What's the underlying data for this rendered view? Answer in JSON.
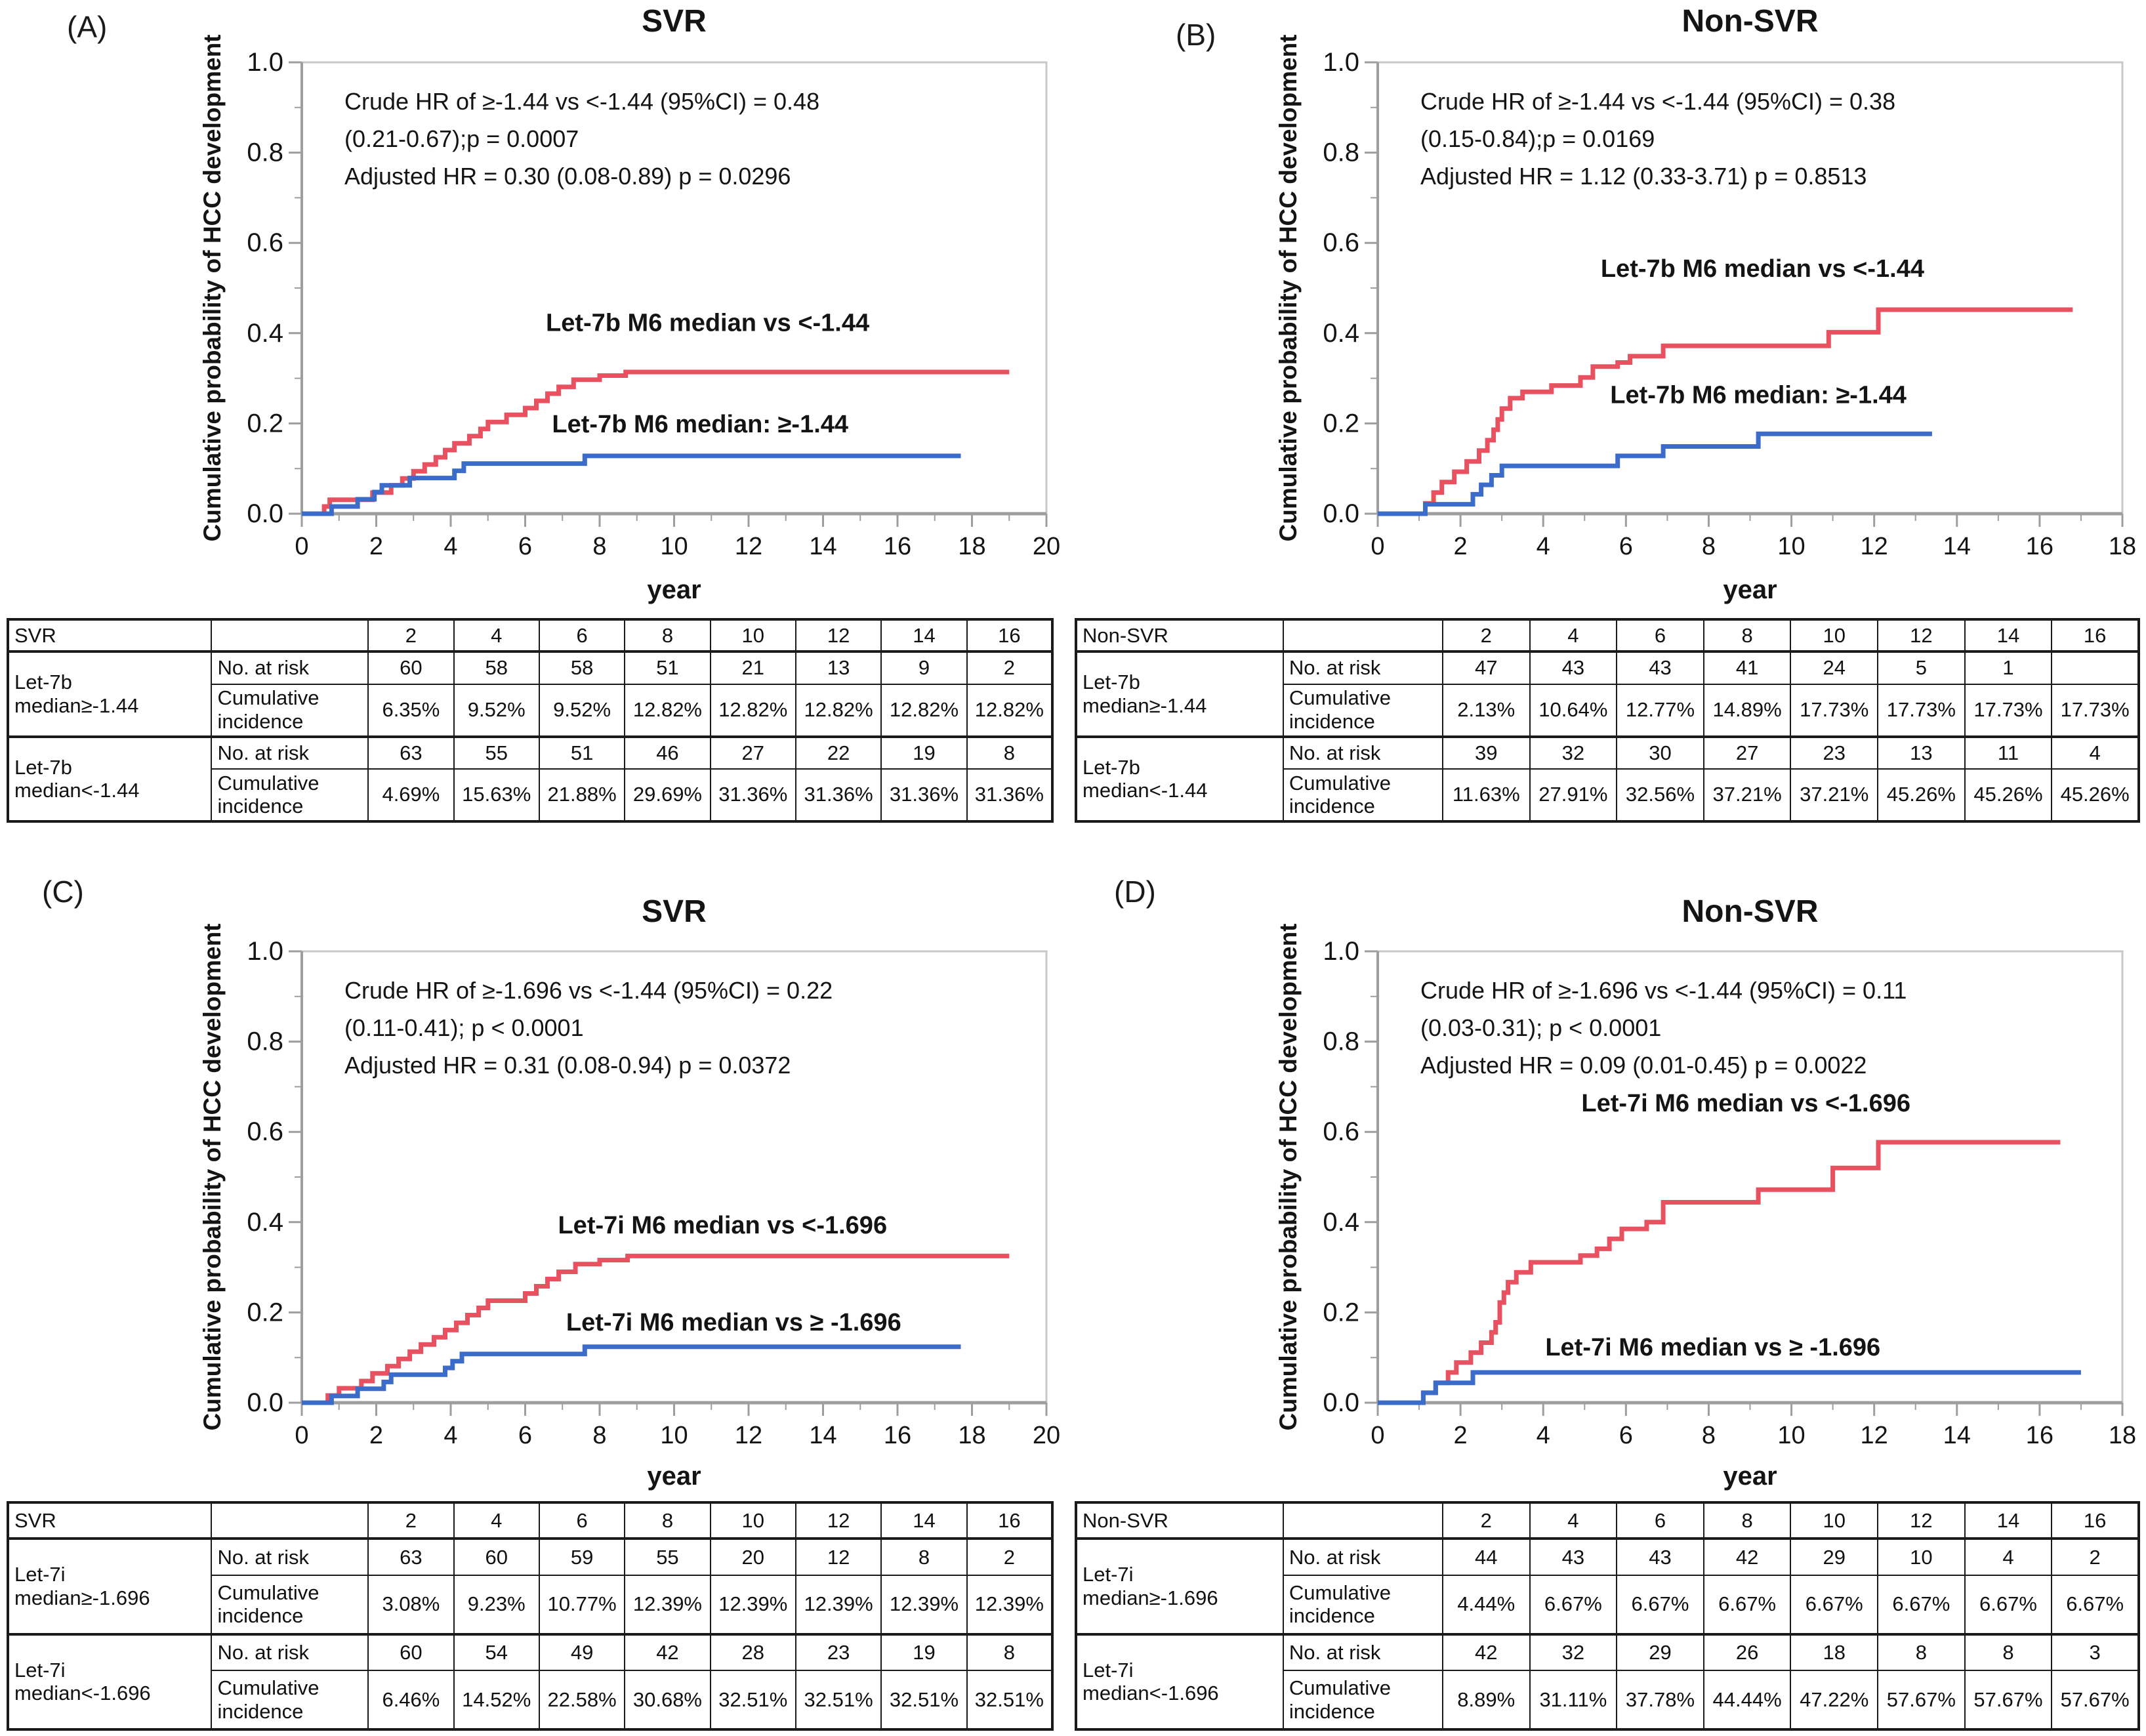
{
  "colors": {
    "red": "#E85160",
    "blue": "#3B6CC9",
    "axis": "#9E9E9E",
    "plot_border": "#C8C8C8",
    "text": "#141414",
    "table_border": "#1A1A1A"
  },
  "shared": {
    "ylabel": "Cumulative probability of HCC development",
    "xlabel": "year",
    "risk_label": "No. at risk",
    "cum_label_line1": "Cumulative",
    "cum_label_line2": "incidence"
  },
  "chart_data": [
    {
      "id": "A",
      "panel_label": "(A)",
      "title": "SVR",
      "type": "line",
      "xlabel": "year",
      "ylabel": "Cumulative probability of HCC development",
      "xlim": [
        0,
        20
      ],
      "ylim": [
        0,
        1
      ],
      "xticks": [
        0,
        2,
        4,
        6,
        8,
        10,
        12,
        14,
        16,
        18,
        20
      ],
      "yticks": [
        0,
        0.2,
        0.4,
        0.6,
        0.8,
        1
      ],
      "annotation": [
        "Crude HR of ≥-1.44 vs <-1.44 (95%CI) = 0.48",
        "(0.21-0.67);p = 0.0007",
        "Adjusted HR = 0.30 (0.08-0.89)  p = 0.0296"
      ],
      "series": [
        {
          "name": "Let-7b M6 median vs <-1.44",
          "color": "red",
          "label_x": 10.9,
          "label_y": 0.405,
          "points": [
            [
              0,
              0
            ],
            [
              0.6,
              0.016
            ],
            [
              0.75,
              0.031
            ],
            [
              1.9,
              0.047
            ],
            [
              2.4,
              0.063
            ],
            [
              2.7,
              0.078
            ],
            [
              3.0,
              0.094
            ],
            [
              3.3,
              0.109
            ],
            [
              3.6,
              0.125
            ],
            [
              3.85,
              0.141
            ],
            [
              4.1,
              0.156
            ],
            [
              4.5,
              0.172
            ],
            [
              4.8,
              0.188
            ],
            [
              5.0,
              0.203
            ],
            [
              5.5,
              0.219
            ],
            [
              6.0,
              0.234
            ],
            [
              6.3,
              0.25
            ],
            [
              6.6,
              0.266
            ],
            [
              6.9,
              0.281
            ],
            [
              7.3,
              0.297
            ],
            [
              8.0,
              0.306
            ],
            [
              8.7,
              0.314
            ],
            [
              19.0,
              0.314
            ]
          ]
        },
        {
          "name": "Let-7b M6 median: ≥-1.44",
          "color": "blue",
          "label_x": 10.7,
          "label_y": 0.18,
          "points": [
            [
              0,
              0
            ],
            [
              0.8,
              0.016
            ],
            [
              1.5,
              0.032
            ],
            [
              1.95,
              0.048
            ],
            [
              2.15,
              0.063
            ],
            [
              2.9,
              0.079
            ],
            [
              4.1,
              0.095
            ],
            [
              4.35,
              0.111
            ],
            [
              7.6,
              0.128
            ],
            [
              17.7,
              0.128
            ]
          ]
        }
      ]
    },
    {
      "id": "B",
      "panel_label": "(B)",
      "title": "Non-SVR",
      "type": "line",
      "xlabel": "year",
      "ylabel": "Cumulative probability of HCC development",
      "xlim": [
        0,
        18
      ],
      "ylim": [
        0,
        1
      ],
      "xticks": [
        0,
        2,
        4,
        6,
        8,
        10,
        12,
        14,
        16,
        18
      ],
      "yticks": [
        0,
        0.2,
        0.4,
        0.6,
        0.8,
        1
      ],
      "annotation": [
        "Crude HR of ≥-1.44 vs <-1.44 (95%CI) = 0.38",
        "(0.15-0.84);p = 0.0169",
        "Adjusted HR = 1.12 (0.33-3.71)  p = 0.8513"
      ],
      "series": [
        {
          "name": "Let-7b M6 median vs <-1.44",
          "color": "red",
          "label_x": 9.3,
          "label_y": 0.525,
          "points": [
            [
              0,
              0
            ],
            [
              1.15,
              0.023
            ],
            [
              1.35,
              0.047
            ],
            [
              1.55,
              0.07
            ],
            [
              1.85,
              0.093
            ],
            [
              2.15,
              0.116
            ],
            [
              2.45,
              0.14
            ],
            [
              2.65,
              0.163
            ],
            [
              2.8,
              0.186
            ],
            [
              2.9,
              0.209
            ],
            [
              3.0,
              0.233
            ],
            [
              3.2,
              0.256
            ],
            [
              3.5,
              0.27
            ],
            [
              4.2,
              0.284
            ],
            [
              4.9,
              0.302
            ],
            [
              5.2,
              0.326
            ],
            [
              5.8,
              0.335
            ],
            [
              6.1,
              0.349
            ],
            [
              6.9,
              0.372
            ],
            [
              10.9,
              0.402
            ],
            [
              12.1,
              0.452
            ],
            [
              16.8,
              0.452
            ]
          ]
        },
        {
          "name": "Let-7b M6 median: ≥-1.44",
          "color": "blue",
          "label_x": 9.2,
          "label_y": 0.245,
          "points": [
            [
              0,
              0
            ],
            [
              1.15,
              0.021
            ],
            [
              2.3,
              0.043
            ],
            [
              2.5,
              0.064
            ],
            [
              2.75,
              0.085
            ],
            [
              3.0,
              0.106
            ],
            [
              5.8,
              0.128
            ],
            [
              6.9,
              0.149
            ],
            [
              9.2,
              0.177
            ],
            [
              13.4,
              0.177
            ]
          ]
        }
      ]
    },
    {
      "id": "C",
      "panel_label": "(C)",
      "title": "SVR",
      "type": "line",
      "xlabel": "year",
      "ylabel": "Cumulative probability of HCC development",
      "xlim": [
        0,
        20
      ],
      "ylim": [
        0,
        1
      ],
      "xticks": [
        0,
        2,
        4,
        6,
        8,
        10,
        12,
        14,
        16,
        18,
        20
      ],
      "yticks": [
        0,
        0.2,
        0.4,
        0.6,
        0.8,
        1
      ],
      "annotation": [
        "Crude HR of ≥-1.696 vs <-1.44 (95%CI) = 0.22",
        "(0.11-0.41); p < 0.0001",
        "Adjusted HR = 0.31 (0.08-0.94) p = 0.0372"
      ],
      "series": [
        {
          "name": "Let-7i M6 median vs <-1.696",
          "color": "red",
          "label_x": 11.3,
          "label_y": 0.375,
          "points": [
            [
              0,
              0
            ],
            [
              0.7,
              0.016
            ],
            [
              1.0,
              0.032
            ],
            [
              1.6,
              0.048
            ],
            [
              1.9,
              0.065
            ],
            [
              2.3,
              0.081
            ],
            [
              2.6,
              0.097
            ],
            [
              2.9,
              0.113
            ],
            [
              3.2,
              0.129
            ],
            [
              3.55,
              0.145
            ],
            [
              3.85,
              0.161
            ],
            [
              4.15,
              0.177
            ],
            [
              4.45,
              0.194
            ],
            [
              4.75,
              0.21
            ],
            [
              5.0,
              0.226
            ],
            [
              6.0,
              0.242
            ],
            [
              6.3,
              0.258
            ],
            [
              6.6,
              0.274
            ],
            [
              6.9,
              0.29
            ],
            [
              7.35,
              0.307
            ],
            [
              8.0,
              0.316
            ],
            [
              8.75,
              0.325
            ],
            [
              19.0,
              0.325
            ]
          ]
        },
        {
          "name": "Let-7i M6 median vs ≥ -1.696",
          "color": "blue",
          "label_x": 11.6,
          "label_y": 0.16,
          "points": [
            [
              0,
              0
            ],
            [
              0.8,
              0.015
            ],
            [
              1.5,
              0.031
            ],
            [
              2.2,
              0.046
            ],
            [
              2.4,
              0.062
            ],
            [
              3.85,
              0.077
            ],
            [
              4.05,
              0.092
            ],
            [
              4.3,
              0.108
            ],
            [
              7.6,
              0.124
            ],
            [
              17.7,
              0.124
            ]
          ]
        }
      ]
    },
    {
      "id": "D",
      "panel_label": "(D)",
      "title": "Non-SVR",
      "type": "line",
      "xlabel": "year",
      "ylabel": "Cumulative probability of HCC development",
      "xlim": [
        0,
        18
      ],
      "ylim": [
        0,
        1
      ],
      "xticks": [
        0,
        2,
        4,
        6,
        8,
        10,
        12,
        14,
        16,
        18
      ],
      "yticks": [
        0,
        0.2,
        0.4,
        0.6,
        0.8,
        1
      ],
      "annotation": [
        "Crude HR of ≥-1.696 vs <-1.44 (95%CI) = 0.11",
        "(0.03-0.31); p < 0.0001",
        "Adjusted HR = 0.09 (0.01-0.45) p = 0.0022"
      ],
      "series": [
        {
          "name": "Let-7i M6 median vs <-1.696",
          "color": "red",
          "label_x": 8.9,
          "label_y": 0.645,
          "points": [
            [
              0,
              0
            ],
            [
              1.1,
              0.022
            ],
            [
              1.4,
              0.044
            ],
            [
              1.7,
              0.067
            ],
            [
              1.9,
              0.089
            ],
            [
              2.25,
              0.111
            ],
            [
              2.5,
              0.133
            ],
            [
              2.75,
              0.156
            ],
            [
              2.85,
              0.178
            ],
            [
              2.95,
              0.222
            ],
            [
              3.05,
              0.244
            ],
            [
              3.15,
              0.267
            ],
            [
              3.35,
              0.289
            ],
            [
              3.7,
              0.311
            ],
            [
              4.9,
              0.326
            ],
            [
              5.3,
              0.341
            ],
            [
              5.6,
              0.363
            ],
            [
              5.9,
              0.385
            ],
            [
              6.5,
              0.4
            ],
            [
              6.9,
              0.444
            ],
            [
              9.2,
              0.472
            ],
            [
              11.0,
              0.52
            ],
            [
              12.1,
              0.577
            ],
            [
              16.5,
              0.577
            ]
          ]
        },
        {
          "name": "Let-7i M6 median vs ≥ -1.696",
          "color": "blue",
          "label_x": 8.1,
          "label_y": 0.105,
          "points": [
            [
              0,
              0
            ],
            [
              1.1,
              0.022
            ],
            [
              1.4,
              0.044
            ],
            [
              2.3,
              0.067
            ],
            [
              17.0,
              0.067
            ]
          ]
        }
      ]
    }
  ],
  "tables": [
    {
      "id": "A",
      "corner": "SVR",
      "years": [
        "2",
        "4",
        "6",
        "8",
        "10",
        "12",
        "14",
        "16"
      ],
      "groups": [
        {
          "label_lines": [
            "Let-7b",
            "median≥-1.44"
          ],
          "risk": [
            "60",
            "58",
            "58",
            "51",
            "21",
            "13",
            "9",
            "2"
          ],
          "cum": [
            "6.35%",
            "9.52%",
            "9.52%",
            "12.82%",
            "12.82%",
            "12.82%",
            "12.82%",
            "12.82%"
          ]
        },
        {
          "label_lines": [
            "Let-7b",
            "median<-1.44"
          ],
          "risk": [
            "63",
            "55",
            "51",
            "46",
            "27",
            "22",
            "19",
            "8"
          ],
          "cum": [
            "4.69%",
            "15.63%",
            "21.88%",
            "29.69%",
            "31.36%",
            "31.36%",
            "31.36%",
            "31.36%"
          ]
        }
      ]
    },
    {
      "id": "B",
      "corner": "Non-SVR",
      "years": [
        "2",
        "4",
        "6",
        "8",
        "10",
        "12",
        "14",
        "16"
      ],
      "groups": [
        {
          "label_lines": [
            "Let-7b",
            "median≥-1.44"
          ],
          "risk": [
            "47",
            "43",
            "43",
            "41",
            "24",
            "5",
            "1",
            ""
          ],
          "cum": [
            "2.13%",
            "10.64%",
            "12.77%",
            "14.89%",
            "17.73%",
            "17.73%",
            "17.73%",
            "17.73%"
          ]
        },
        {
          "label_lines": [
            "Let-7b",
            "median<-1.44"
          ],
          "risk": [
            "39",
            "32",
            "30",
            "27",
            "23",
            "13",
            "11",
            "4"
          ],
          "cum": [
            "11.63%",
            "27.91%",
            "32.56%",
            "37.21%",
            "37.21%",
            "45.26%",
            "45.26%",
            "45.26%"
          ]
        }
      ]
    },
    {
      "id": "C",
      "corner": "SVR",
      "years": [
        "2",
        "4",
        "6",
        "8",
        "10",
        "12",
        "14",
        "16"
      ],
      "groups": [
        {
          "label_lines": [
            "Let-7i",
            "median≥-1.696"
          ],
          "risk": [
            "63",
            "60",
            "59",
            "55",
            "20",
            "12",
            "8",
            "2"
          ],
          "cum": [
            "3.08%",
            "9.23%",
            "10.77%",
            "12.39%",
            "12.39%",
            "12.39%",
            "12.39%",
            "12.39%"
          ]
        },
        {
          "label_lines": [
            "Let-7i",
            "median<-1.696"
          ],
          "risk": [
            "60",
            "54",
            "49",
            "42",
            "28",
            "23",
            "19",
            "8"
          ],
          "cum": [
            "6.46%",
            "14.52%",
            "22.58%",
            "30.68%",
            "32.51%",
            "32.51%",
            "32.51%",
            "32.51%"
          ]
        }
      ]
    },
    {
      "id": "D",
      "corner": "Non-SVR",
      "years": [
        "2",
        "4",
        "6",
        "8",
        "10",
        "12",
        "14",
        "16"
      ],
      "groups": [
        {
          "label_lines": [
            "Let-7i",
            "median≥-1.696"
          ],
          "risk": [
            "44",
            "43",
            "43",
            "42",
            "29",
            "10",
            "4",
            "2"
          ],
          "cum": [
            "4.44%",
            "6.67%",
            "6.67%",
            "6.67%",
            "6.67%",
            "6.67%",
            "6.67%",
            "6.67%"
          ]
        },
        {
          "label_lines": [
            "Let-7i",
            "median<-1.696"
          ],
          "risk": [
            "42",
            "32",
            "29",
            "26",
            "18",
            "8",
            "8",
            "3"
          ],
          "cum": [
            "8.89%",
            "31.11%",
            "37.78%",
            "44.44%",
            "47.22%",
            "57.67%",
            "57.67%",
            "57.67%"
          ]
        }
      ]
    }
  ]
}
